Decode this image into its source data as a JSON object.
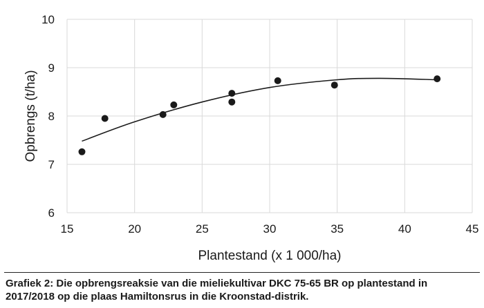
{
  "chart_data": {
    "type": "scatter",
    "xlabel": "Plantestand (x 1 000/ha)",
    "ylabel": "Opbrengs (t/ha)",
    "xlim": [
      15,
      45
    ],
    "ylim": [
      6,
      10
    ],
    "xticks": [
      "15",
      "20",
      "25",
      "30",
      "35",
      "40",
      "45"
    ],
    "yticks": [
      "6",
      "7",
      "8",
      "9",
      "10"
    ],
    "grid": true,
    "points": [
      {
        "x": 16.1,
        "y": 7.26
      },
      {
        "x": 17.8,
        "y": 7.95
      },
      {
        "x": 22.1,
        "y": 8.03
      },
      {
        "x": 22.9,
        "y": 8.23
      },
      {
        "x": 27.2,
        "y": 8.47
      },
      {
        "x": 27.2,
        "y": 8.29
      },
      {
        "x": 30.6,
        "y": 8.73
      },
      {
        "x": 34.8,
        "y": 8.64
      },
      {
        "x": 42.4,
        "y": 8.77
      }
    ],
    "trendline": {
      "type": "polynomial-2",
      "x": [
        16.1,
        20,
        25,
        30,
        35,
        38.2,
        42.4
      ],
      "y": [
        7.48,
        7.88,
        8.29,
        8.59,
        8.75,
        8.78,
        8.75
      ]
    },
    "marker_color": "#1a1a1a",
    "grid_color": "#d9d9d9"
  },
  "caption": {
    "line1": "Grafiek 2: Die opbrengsreaksie van die mieliekultivar DKC 75-65 BR op plantestand in",
    "line2": "2017/2018 op die plaas Hamiltonsrus in die Kroonstad-distrik."
  }
}
